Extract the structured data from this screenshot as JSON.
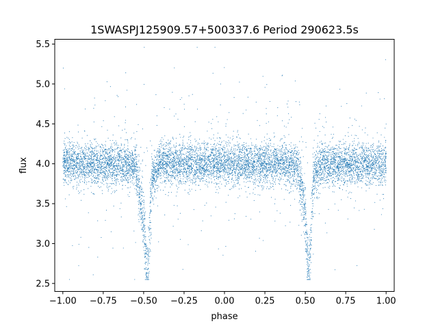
{
  "chart_data": {
    "type": "scatter",
    "title": "1SWASPJ125909.57+500337.6 Period 290623.5s",
    "xlabel": "phase",
    "ylabel": "flux",
    "xlim": [
      -1.05,
      1.05
    ],
    "ylim": [
      2.4,
      5.56
    ],
    "grid": false,
    "point_color": "#1f77b4",
    "x_ticks": [
      {
        "value": -1.0,
        "label": "−1.00"
      },
      {
        "value": -0.75,
        "label": "−0.75"
      },
      {
        "value": -0.5,
        "label": "−0.50"
      },
      {
        "value": -0.25,
        "label": "−0.25"
      },
      {
        "value": 0.0,
        "label": "0.00"
      },
      {
        "value": 0.25,
        "label": "0.25"
      },
      {
        "value": 0.5,
        "label": "0.50"
      },
      {
        "value": 0.75,
        "label": "0.75"
      },
      {
        "value": 1.0,
        "label": "1.00"
      }
    ],
    "y_ticks": [
      {
        "value": 2.5,
        "label": "2.5"
      },
      {
        "value": 3.0,
        "label": "3.0"
      },
      {
        "value": 3.5,
        "label": "3.5"
      },
      {
        "value": 4.0,
        "label": "4.0"
      },
      {
        "value": 4.5,
        "label": "4.5"
      },
      {
        "value": 5.0,
        "label": "5.0"
      },
      {
        "value": 5.5,
        "label": "5.5"
      }
    ],
    "series": [
      {
        "baseline_flux": 4.0,
        "baseline_spread": 0.13,
        "eclipse_centers": [
          -0.48,
          0.52
        ],
        "eclipse_min_flux": 2.55,
        "x": [
          -1.0,
          -0.95,
          -0.9,
          -0.85,
          -0.8,
          -0.75,
          -0.7,
          -0.65,
          -0.6,
          -0.55,
          -0.5,
          -0.49,
          -0.48,
          -0.47,
          -0.46,
          -0.45,
          -0.4,
          -0.35,
          -0.3,
          -0.25,
          -0.2,
          -0.15,
          -0.1,
          -0.05,
          0.0,
          0.05,
          0.1,
          0.15,
          0.2,
          0.25,
          0.3,
          0.35,
          0.4,
          0.45,
          0.5,
          0.51,
          0.52,
          0.53,
          0.54,
          0.55,
          0.6,
          0.65,
          0.7,
          0.75,
          0.8,
          0.85,
          0.9,
          0.95,
          1.0
        ],
        "y": [
          4.0,
          4.02,
          3.98,
          4.0,
          4.01,
          4.0,
          3.99,
          4.0,
          4.0,
          3.95,
          3.3,
          2.9,
          2.6,
          2.8,
          3.3,
          3.8,
          4.0,
          4.01,
          3.99,
          4.0,
          4.0,
          3.98,
          4.0,
          4.01,
          4.0,
          4.0,
          4.0,
          3.99,
          4.0,
          4.02,
          4.0,
          4.0,
          3.99,
          3.97,
          3.4,
          2.9,
          2.6,
          2.8,
          3.3,
          3.8,
          4.0,
          4.0,
          4.0,
          3.99,
          4.0,
          4.01,
          4.0,
          3.98,
          4.0
        ]
      }
    ]
  }
}
